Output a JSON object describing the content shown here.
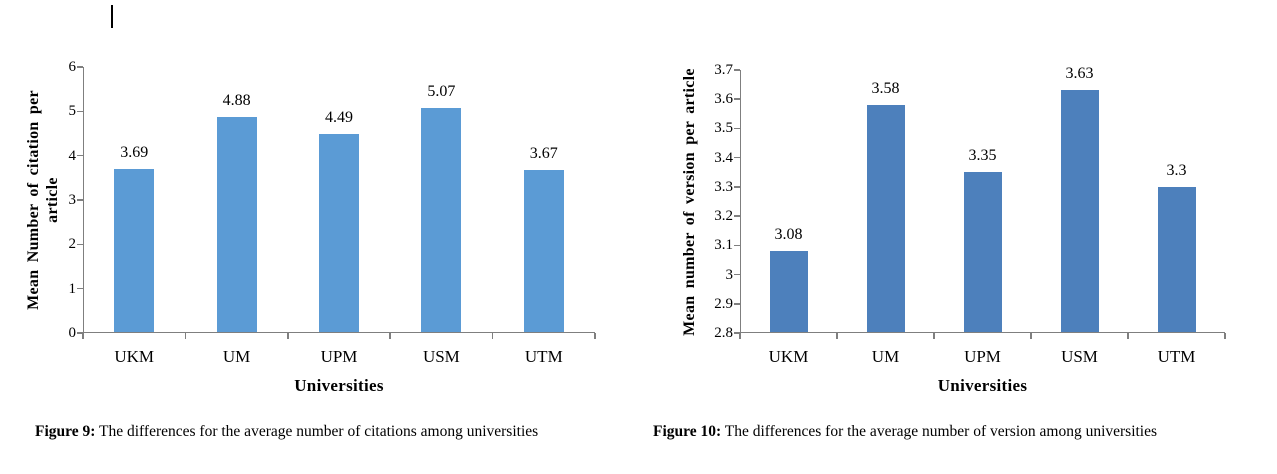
{
  "page": {
    "background": "#ffffff"
  },
  "figures": [
    {
      "caption": {
        "prefix": "Figure 9:",
        "text": " The differences for the average number of citations among universities"
      }
    },
    {
      "caption": {
        "prefix": "Figure 10:",
        "text": " The differences for the average number of version among universities"
      }
    }
  ],
  "chart_data": [
    {
      "type": "bar",
      "title": "",
      "categories": [
        "UKM",
        "UM",
        "UPM",
        "USM",
        "UTM"
      ],
      "values": [
        3.69,
        4.88,
        4.49,
        5.07,
        3.67
      ],
      "labels": [
        "3.69",
        "4.88",
        "4.49",
        "5.07",
        "3.67"
      ],
      "xlabel": "Universities",
      "ylabel": "Mean Number of citation per\narticle",
      "ylim": [
        0,
        6
      ],
      "yticks": [
        "0",
        "1",
        "2",
        "3",
        "4",
        "5",
        "6"
      ],
      "bar_color": "#5b9bd5",
      "grid": false,
      "legend": "none"
    },
    {
      "type": "bar",
      "title": "",
      "categories": [
        "UKM",
        "UM",
        "UPM",
        "USM",
        "UTM"
      ],
      "values": [
        3.08,
        3.58,
        3.35,
        3.63,
        3.3
      ],
      "labels": [
        "3.08",
        "3.58",
        "3.35",
        "3.63",
        "3.3"
      ],
      "xlabel": "Universities",
      "ylabel": "Mean number of version per article",
      "ylim": [
        2.8,
        3.7
      ],
      "yticks": [
        "2.8",
        "2.9",
        "3",
        "3.1",
        "3.2",
        "3.3",
        "3.4",
        "3.5",
        "3.6",
        "3.7"
      ],
      "bar_color": "#4d80bc",
      "grid": false,
      "legend": "none"
    }
  ]
}
